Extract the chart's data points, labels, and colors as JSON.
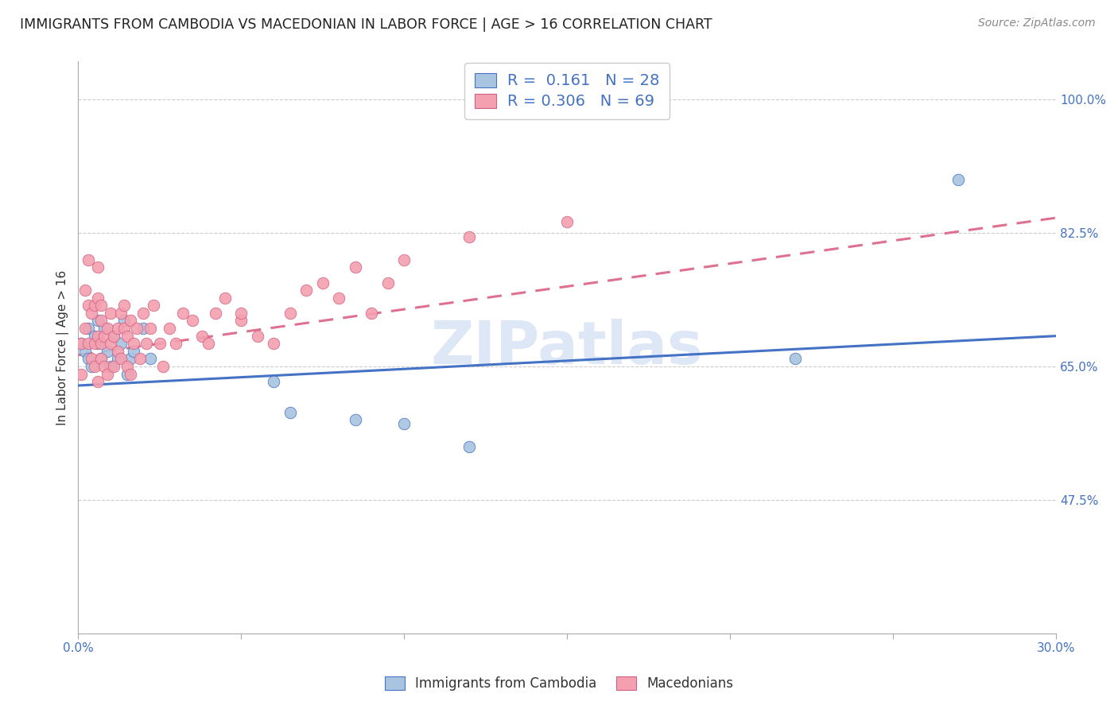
{
  "title": "IMMIGRANTS FROM CAMBODIA VS MACEDONIAN IN LABOR FORCE | AGE > 16 CORRELATION CHART",
  "source": "Source: ZipAtlas.com",
  "ylabel": "In Labor Force | Age > 16",
  "xlim": [
    0.0,
    0.3
  ],
  "ylim": [
    0.3,
    1.05
  ],
  "x_tick_positions": [
    0.0,
    0.05,
    0.1,
    0.15,
    0.2,
    0.25,
    0.3
  ],
  "x_tick_labels": [
    "0.0%",
    "",
    "",
    "",
    "",
    "",
    "30.0%"
  ],
  "y_tick_positions": [
    0.475,
    0.65,
    0.825,
    1.0
  ],
  "y_tick_labels": [
    "47.5%",
    "65.0%",
    "82.5%",
    "100.0%"
  ],
  "cambodia_R": 0.161,
  "cambodia_N": 28,
  "macedonian_R": 0.306,
  "macedonian_N": 69,
  "cambodia_color": "#a8c4e0",
  "macedonian_color": "#f4a0b0",
  "trend_cambodia_color": "#4472c4",
  "trend_macedonian_color": "#e07090",
  "watermark": "ZIPatlas",
  "watermark_color": "#c8d8f0",
  "cambodia_x": [
    0.001,
    0.002,
    0.003,
    0.003,
    0.004,
    0.005,
    0.006,
    0.006,
    0.007,
    0.008,
    0.009,
    0.01,
    0.011,
    0.012,
    0.013,
    0.014,
    0.015,
    0.016,
    0.017,
    0.02,
    0.022,
    0.06,
    0.065,
    0.085,
    0.1,
    0.12,
    0.27,
    0.22
  ],
  "cambodia_y": [
    0.68,
    0.67,
    0.66,
    0.7,
    0.65,
    0.69,
    0.68,
    0.71,
    0.66,
    0.7,
    0.67,
    0.65,
    0.69,
    0.66,
    0.68,
    0.71,
    0.64,
    0.66,
    0.67,
    0.7,
    0.66,
    0.63,
    0.59,
    0.58,
    0.575,
    0.545,
    0.895,
    0.66
  ],
  "macedonian_x": [
    0.001,
    0.001,
    0.002,
    0.002,
    0.003,
    0.003,
    0.003,
    0.004,
    0.004,
    0.005,
    0.005,
    0.005,
    0.006,
    0.006,
    0.006,
    0.006,
    0.007,
    0.007,
    0.007,
    0.007,
    0.008,
    0.008,
    0.009,
    0.009,
    0.01,
    0.01,
    0.011,
    0.011,
    0.012,
    0.012,
    0.013,
    0.013,
    0.014,
    0.014,
    0.015,
    0.015,
    0.016,
    0.016,
    0.017,
    0.018,
    0.019,
    0.02,
    0.021,
    0.022,
    0.023,
    0.025,
    0.026,
    0.028,
    0.03,
    0.032,
    0.035,
    0.038,
    0.04,
    0.042,
    0.045,
    0.05,
    0.055,
    0.06,
    0.065,
    0.07,
    0.075,
    0.08,
    0.085,
    0.09,
    0.095,
    0.1,
    0.12,
    0.15,
    0.05
  ],
  "macedonian_y": [
    0.68,
    0.64,
    0.7,
    0.75,
    0.68,
    0.73,
    0.79,
    0.66,
    0.72,
    0.68,
    0.73,
    0.65,
    0.69,
    0.74,
    0.63,
    0.78,
    0.68,
    0.73,
    0.66,
    0.71,
    0.69,
    0.65,
    0.7,
    0.64,
    0.68,
    0.72,
    0.69,
    0.65,
    0.7,
    0.67,
    0.72,
    0.66,
    0.7,
    0.73,
    0.65,
    0.69,
    0.71,
    0.64,
    0.68,
    0.7,
    0.66,
    0.72,
    0.68,
    0.7,
    0.73,
    0.68,
    0.65,
    0.7,
    0.68,
    0.72,
    0.71,
    0.69,
    0.68,
    0.72,
    0.74,
    0.71,
    0.69,
    0.68,
    0.72,
    0.75,
    0.76,
    0.74,
    0.78,
    0.72,
    0.76,
    0.79,
    0.82,
    0.84,
    0.72
  ],
  "trend_cambodia_x0": 0.0,
  "trend_cambodia_y0": 0.625,
  "trend_cambodia_x1": 0.3,
  "trend_cambodia_y1": 0.69,
  "trend_macedonian_x0": 0.0,
  "trend_macedonian_y0": 0.665,
  "trend_macedonian_x1": 0.3,
  "trend_macedonian_y1": 0.845
}
